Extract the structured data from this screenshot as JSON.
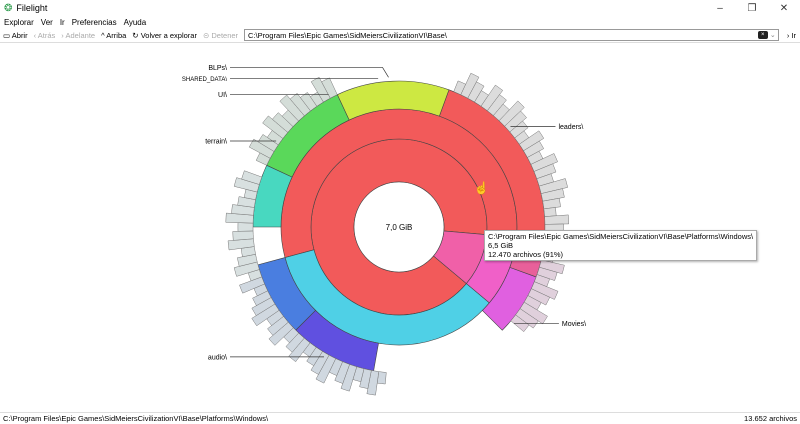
{
  "window": {
    "title": "Filelight",
    "minimize": "–",
    "maximize": "❐",
    "close": "✕"
  },
  "menu": [
    "Explorar",
    "Ver",
    "Ir",
    "Preferencias",
    "Ayuda"
  ],
  "toolbar": {
    "open": "Abrir",
    "back": "Atrás",
    "forward": "Adelante",
    "up": "Arriba",
    "rescan": "Volver a explorar",
    "stop": "Detener",
    "address": "C:\\Program Files\\Epic Games\\SidMeiersCivilizationVI\\Base\\",
    "go": "Ir"
  },
  "tooltip": {
    "path": "C:\\Program Files\\Epic Games\\SidMeiersCivilizationVI\\Base\\Platforms\\Windows\\",
    "size": "6,5 GiB",
    "files": "12.470 archivos (91%)"
  },
  "status": {
    "path": "C:\\Program Files\\Epic Games\\SidMeiersCivilizationVI\\Base\\Platforms\\Windows\\",
    "count": "13.652 archivos"
  },
  "chart_data": {
    "type": "sunburst",
    "center_label": "7,0 GiB",
    "labels": [
      {
        "text": "SHARED_DATA\\",
        "angle": 262
      },
      {
        "text": "BLPs\\",
        "angle": 266
      },
      {
        "text": "UI\\",
        "angle": 242
      },
      {
        "text": "terrain\\",
        "angle": 215
      },
      {
        "text": "leaders\\",
        "angle": 318
      },
      {
        "text": "Movies\\",
        "angle": 40
      },
      {
        "text": "audio\\",
        "angle": 120
      }
    ],
    "segments": [
      {
        "level": 1,
        "start": 40,
        "end": 365,
        "color": "#f25a5a"
      },
      {
        "level": 1,
        "start": 5,
        "end": 40,
        "color": "#f060a8"
      },
      {
        "level": 2,
        "start": 165,
        "end": 365,
        "color": "#f25a5a"
      },
      {
        "level": 2,
        "start": 40,
        "end": 165,
        "color": "#4fd0e6"
      },
      {
        "level": 2,
        "start": 5,
        "end": 40,
        "color": "#f060c8"
      },
      {
        "level": 3,
        "start": 290,
        "end": 365,
        "color": "#f25a5a"
      },
      {
        "level": 3,
        "start": 245,
        "end": 290,
        "color": "#cde842"
      },
      {
        "level": 3,
        "start": 205,
        "end": 245,
        "color": "#5ad85a"
      },
      {
        "level": 3,
        "start": 180,
        "end": 205,
        "color": "#48d8c0"
      },
      {
        "level": 3,
        "start": 135,
        "end": 165,
        "color": "#4a7ee0"
      },
      {
        "level": 3,
        "start": 100,
        "end": 135,
        "color": "#6050e0"
      },
      {
        "level": 3,
        "start": 20,
        "end": 45,
        "color": "#e060e0"
      },
      {
        "level": 3,
        "start": 5,
        "end": 20,
        "color": "#e8609a"
      },
      {
        "level": 4,
        "start": 292,
        "end": 362,
        "color": "#dcdcdc"
      },
      {
        "level": 4,
        "start": 205,
        "end": 245,
        "color": "#d4ddd8"
      },
      {
        "level": 4,
        "start": 160,
        "end": 200,
        "color": "#d8e0e0"
      },
      {
        "level": 4,
        "start": 95,
        "end": 160,
        "color": "#d0d8e0"
      },
      {
        "level": 4,
        "start": 10,
        "end": 40,
        "color": "#e0d0dc"
      }
    ]
  }
}
